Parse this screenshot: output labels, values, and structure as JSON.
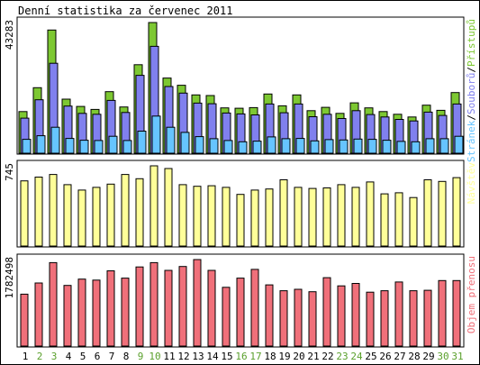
{
  "chart_data": {
    "type": "bar",
    "title": "Denní statistika za červenec 2011",
    "categories": [
      "1",
      "2",
      "3",
      "4",
      "5",
      "6",
      "7",
      "8",
      "9",
      "10",
      "11",
      "12",
      "13",
      "14",
      "15",
      "16",
      "17",
      "18",
      "19",
      "20",
      "21",
      "22",
      "23",
      "24",
      "25",
      "26",
      "27",
      "28",
      "29",
      "30",
      "31"
    ],
    "weekend_days": [
      "2",
      "3",
      "9",
      "10",
      "16",
      "17",
      "23",
      "24",
      "30",
      "31"
    ],
    "colors": {
      "hits": "#7dc832",
      "files": "#8080ee",
      "pages": "#66c4ff",
      "visits": "#ffff99",
      "kbytes": "#f0707a",
      "weekday_label": "#000000",
      "weekend_label": "#5aa02c"
    },
    "panels": [
      {
        "ymax": 43283,
        "ymax_label": "43283",
        "right_label": {
          "parts": [
            {
              "text": "Stránek",
              "color": "#66c4ff"
            },
            {
              "text": "/",
              "color": "#000000"
            },
            {
              "text": "Souborů",
              "color": "#8080ee"
            },
            {
              "text": "/",
              "color": "#000000"
            },
            {
              "text": "Přístupů",
              "color": "#7dc832"
            }
          ]
        },
        "series": [
          {
            "key": "hits",
            "values": [
              13800,
              21700,
              40800,
              17900,
              15500,
              14500,
              20400,
              15300,
              29300,
              43283,
              24900,
              22500,
              19300,
              19100,
              15000,
              14900,
              15100,
              19600,
              15700,
              19300,
              14100,
              15200,
              13200,
              16700,
              15000,
              13800,
              12900,
              12000,
              15900,
              14200,
              20100
            ]
          },
          {
            "key": "files",
            "values": [
              11600,
              17700,
              29800,
              15600,
              13200,
              12900,
              17500,
              13500,
              25800,
              35400,
              22100,
              19900,
              16600,
              16400,
              13300,
              13000,
              12700,
              16300,
              13400,
              16300,
              12100,
              12900,
              11500,
              14100,
              12800,
              12000,
              11200,
              10700,
              13600,
              12500,
              16300
            ]
          },
          {
            "key": "pages",
            "values": [
              4600,
              5800,
              8600,
              4900,
              4300,
              4200,
              5600,
              4200,
              7300,
              12300,
              8600,
              6900,
              5500,
              4800,
              4200,
              3800,
              4000,
              5400,
              4800,
              4900,
              4100,
              4500,
              4400,
              4700,
              4600,
              4300,
              3900,
              3800,
              4800,
              4800,
              5600
            ]
          }
        ]
      },
      {
        "ymax": 745,
        "ymax_label": "745",
        "right_label": {
          "parts": [
            {
              "text": "Návštěv",
              "color": "#ffff99"
            }
          ]
        },
        "series": [
          {
            "key": "visits",
            "values": [
              605,
              640,
              665,
              570,
              520,
              545,
              575,
              665,
              625,
              745,
              720,
              570,
              555,
              560,
              545,
              480,
              520,
              530,
              615,
              545,
              535,
              540,
              570,
              545,
              595,
              485,
              495,
              450,
              615,
              600,
              635
            ]
          }
        ]
      },
      {
        "ymax": 1782498,
        "ymax_label": "1782498",
        "right_label": {
          "parts": [
            {
              "text": "Objem přenosu",
              "color": "#f0707a"
            }
          ]
        },
        "series": [
          {
            "key": "kbytes",
            "values": [
              1070000,
              1300000,
              1720000,
              1250000,
              1380000,
              1360000,
              1550000,
              1400000,
              1630000,
              1720000,
              1560000,
              1640000,
              1782498,
              1560000,
              1210000,
              1400000,
              1580000,
              1260000,
              1140000,
              1170000,
              1120000,
              1410000,
              1240000,
              1290000,
              1110000,
              1140000,
              1320000,
              1140000,
              1150000,
              1350000,
              1350000
            ]
          }
        ]
      }
    ]
  }
}
